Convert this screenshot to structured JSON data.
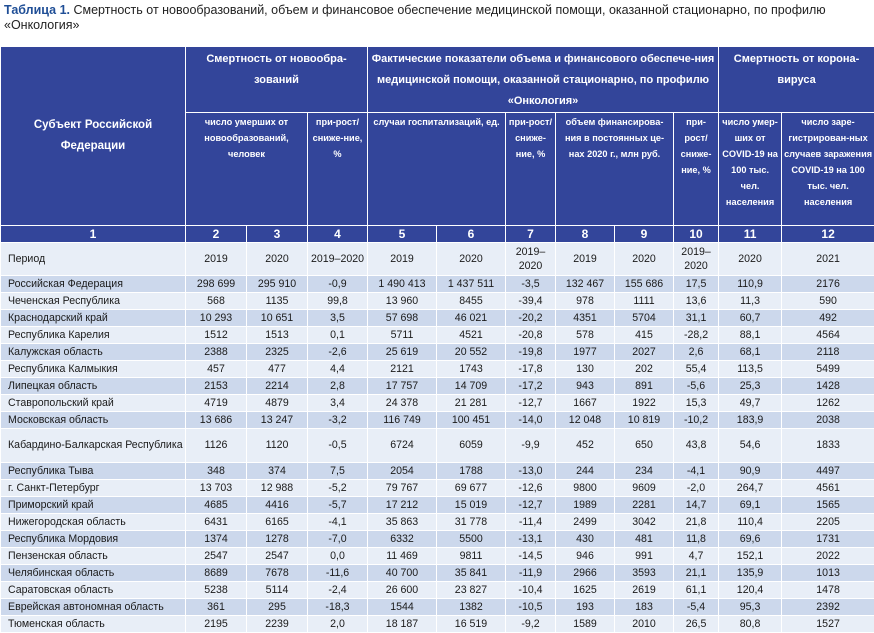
{
  "caption": {
    "label": "Таблица 1.",
    "text": " Смертность от новообразований, объем и финансовое обеспечение медицинской помощи, оказанной стационарно, по профилю «Онкология»"
  },
  "header": {
    "subject": "Субъект Российской Федерации",
    "groups": [
      "Смертность от новообра-зований",
      "Фактические показатели объема и финансового обеспече-ния медицинской помощи, оказанной стационарно, по профилю «Онкология»",
      "Смертность от корона-вируса"
    ],
    "subheads": [
      "число умерших от новообразований, человек",
      "при-рост/ сниже-ние, %",
      "случаи госпитализаций, ед.",
      "при-рост/ сниже-ние, %",
      "объем финансирова-ния в постоянных це-нах 2020 г., млн руб.",
      "при-рост/ сниже-ние, %",
      "число умер-ших от COVID-19 на 100 тыс. чел. населения",
      "число заре-гистрирован-ных случаев заражения COVID-19 на 100 тыс. чел. населения"
    ],
    "numbers": [
      "1",
      "2",
      "3",
      "4",
      "5",
      "6",
      "7",
      "8",
      "9",
      "10",
      "11",
      "12"
    ]
  },
  "period": [
    "Период",
    "2019",
    "2020",
    "2019–2020",
    "2019",
    "2020",
    "2019–2020",
    "2019",
    "2020",
    "2019–2020",
    "2020",
    "2021"
  ],
  "rows": [
    [
      "Российская Федерация",
      "298 699",
      "295 910",
      "-0,9",
      "1 490 413",
      "1 437 511",
      "-3,5",
      "132 467",
      "155 686",
      "17,5",
      "110,9",
      "2176"
    ],
    [
      "Чеченская Республика",
      "568",
      "1135",
      "99,8",
      "13 960",
      "8455",
      "-39,4",
      "978",
      "1111",
      "13,6",
      "11,3",
      "590"
    ],
    [
      "Краснодарский край",
      "10 293",
      "10 651",
      "3,5",
      "57 698",
      "46 021",
      "-20,2",
      "4351",
      "5704",
      "31,1",
      "60,7",
      "492"
    ],
    [
      "Республика Карелия",
      "1512",
      "1513",
      "0,1",
      "5711",
      "4521",
      "-20,8",
      "578",
      "415",
      "-28,2",
      "88,1",
      "4564"
    ],
    [
      "Калужская область",
      "2388",
      "2325",
      "-2,6",
      "25 619",
      "20 552",
      "-19,8",
      "1977",
      "2027",
      "2,6",
      "68,1",
      "2118"
    ],
    [
      "Республика Калмыкия",
      "457",
      "477",
      "4,4",
      "2121",
      "1743",
      "-17,8",
      "130",
      "202",
      "55,4",
      "113,5",
      "5499"
    ],
    [
      "Липецкая область",
      "2153",
      "2214",
      "2,8",
      "17 757",
      "14 709",
      "-17,2",
      "943",
      "891",
      "-5,6",
      "25,3",
      "1428"
    ],
    [
      "Ставропольский край",
      "4719",
      "4879",
      "3,4",
      "24 378",
      "21 281",
      "-12,7",
      "1667",
      "1922",
      "15,3",
      "49,7",
      "1262"
    ],
    [
      "Московская область",
      "13 686",
      "13 247",
      "-3,2",
      "116 749",
      "100 451",
      "-14,0",
      "12 048",
      "10 819",
      "-10,2",
      "183,9",
      "2038"
    ],
    [
      "Кабардино-Балкарская Республика",
      "1126",
      "1120",
      "-0,5",
      "6724",
      "6059",
      "-9,9",
      "452",
      "650",
      "43,8",
      "54,6",
      "1833"
    ],
    [
      "Республика Тыва",
      "348",
      "374",
      "7,5",
      "2054",
      "1788",
      "-13,0",
      "244",
      "234",
      "-4,1",
      "90,9",
      "4497"
    ],
    [
      "г. Санкт-Петербург",
      "13 703",
      "12 988",
      "-5,2",
      "79 767",
      "69 677",
      "-12,6",
      "9800",
      "9609",
      "-2,0",
      "264,7",
      "4561"
    ],
    [
      "Приморский край",
      "4685",
      "4416",
      "-5,7",
      "17 212",
      "15 019",
      "-12,7",
      "1989",
      "2281",
      "14,7",
      "69,1",
      "1565"
    ],
    [
      "Нижегородская область",
      "6431",
      "6165",
      "-4,1",
      "35 863",
      "31 778",
      "-11,4",
      "2499",
      "3042",
      "21,8",
      "110,4",
      "2205"
    ],
    [
      "Республика Мордовия",
      "1374",
      "1278",
      "-7,0",
      "6332",
      "5500",
      "-13,1",
      "430",
      "481",
      "11,8",
      "69,6",
      "1731"
    ],
    [
      "Пензенская область",
      "2547",
      "2547",
      "0,0",
      "11 469",
      "9811",
      "-14,5",
      "946",
      "991",
      "4,7",
      "152,1",
      "2022"
    ],
    [
      "Челябинская область",
      "8689",
      "7678",
      "-11,6",
      "40 700",
      "35 841",
      "-11,9",
      "2966",
      "3593",
      "21,1",
      "135,9",
      "1013"
    ],
    [
      "Саратовская область",
      "5238",
      "5114",
      "-2,4",
      "26 600",
      "23 827",
      "-10,4",
      "1625",
      "2619",
      "61,1",
      "120,4",
      "1478"
    ],
    [
      "Еврейская автономная область",
      "361",
      "295",
      "-18,3",
      "1544",
      "1382",
      "-10,5",
      "193",
      "183",
      "-5,4",
      "95,3",
      "2392"
    ],
    [
      "Тюменская область",
      "2195",
      "2239",
      "2,0",
      "18 187",
      "16 519",
      "-9,2",
      "1589",
      "2010",
      "26,5",
      "80,8",
      "1527"
    ]
  ]
}
